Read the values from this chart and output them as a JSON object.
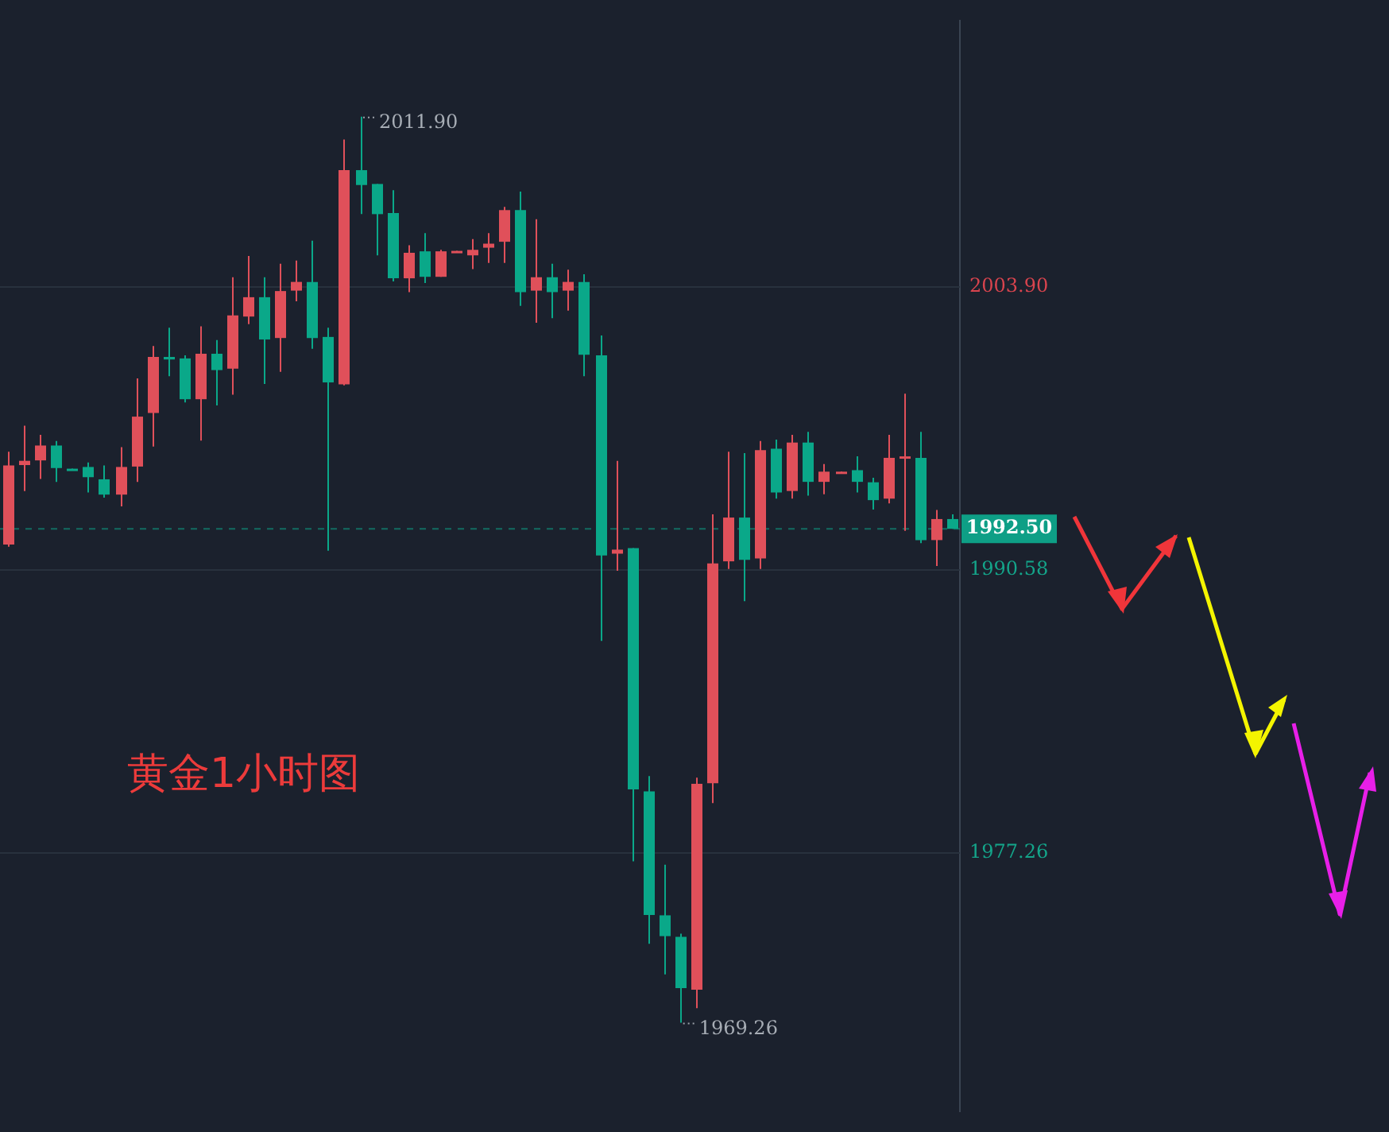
{
  "chart_data": {
    "type": "candlestick",
    "categories": [
      null,
      null,
      null,
      null,
      null,
      null,
      null,
      null,
      null,
      null,
      null,
      null,
      null,
      null,
      null,
      null,
      null,
      null,
      null,
      null,
      null,
      null,
      null,
      null,
      null,
      null,
      null,
      null,
      null,
      null,
      null,
      null,
      null,
      null,
      null,
      null,
      null,
      null,
      null,
      null,
      null,
      null,
      null,
      null,
      null,
      null,
      null,
      null,
      null,
      null,
      null,
      null,
      null,
      null,
      null,
      null,
      null,
      null,
      null,
      null
    ],
    "ohlc": [
      [
        1991.76,
        1996.13,
        1991.66,
        1995.48
      ],
      [
        1995.5,
        1997.35,
        1994.28,
        1995.7
      ],
      [
        1995.72,
        1996.92,
        1994.85,
        1996.42
      ],
      [
        1996.42,
        1996.63,
        1994.71,
        1995.36
      ],
      [
        1995.33,
        1995.33,
        1995.3,
        1995.3
      ],
      [
        1995.41,
        1995.62,
        1994.21,
        1994.93
      ],
      [
        1994.83,
        1995.48,
        1993.97,
        1994.11
      ],
      [
        1994.11,
        1996.34,
        1993.56,
        1995.41
      ],
      [
        1995.43,
        1999.58,
        1994.71,
        1997.78
      ],
      [
        1997.95,
        2001.1,
        1996.37,
        2000.59
      ],
      [
        2000.59,
        2001.96,
        1999.68,
        2000.47
      ],
      [
        2000.52,
        2000.66,
        1998.45,
        1998.6
      ],
      [
        1998.6,
        2002.03,
        1996.65,
        2000.74
      ],
      [
        2000.74,
        2001.38,
        1998.31,
        1999.97
      ],
      [
        2000.04,
        2004.34,
        1998.81,
        2002.54
      ],
      [
        2002.49,
        2005.34,
        2002.13,
        2003.4
      ],
      [
        2003.4,
        2004.34,
        1999.32,
        2001.41
      ],
      [
        2001.48,
        2004.98,
        1999.89,
        2003.69
      ],
      [
        2003.71,
        2005.13,
        2003.21,
        2004.12
      ],
      [
        2004.12,
        2006.06,
        2000.97,
        2001.48
      ],
      [
        2001.53,
        2001.96,
        1991.47,
        1999.39
      ],
      [
        1999.3,
        2010.82,
        1999.25,
        2009.38
      ],
      [
        2009.38,
        2011.9,
        2007.31,
        2008.68
      ],
      [
        2008.73,
        2008.73,
        2005.37,
        2007.31
      ],
      [
        2007.36,
        2008.44,
        2004.14,
        2004.29
      ],
      [
        2004.29,
        2005.85,
        2003.64,
        2005.49
      ],
      [
        2005.56,
        2006.42,
        2004.07,
        2004.36
      ],
      [
        2004.36,
        2005.63,
        2004.36,
        2005.56
      ],
      [
        2005.53,
        2005.58,
        2005.53,
        2005.58
      ],
      [
        2005.37,
        2006.14,
        2004.72,
        2005.63
      ],
      [
        2005.73,
        2006.42,
        2005.01,
        2005.92
      ],
      [
        2006.01,
        2007.65,
        2005.01,
        2007.5
      ],
      [
        2007.5,
        2008.37,
        2002.99,
        2003.64
      ],
      [
        2003.71,
        2007.07,
        2002.2,
        2004.34
      ],
      [
        2004.34,
        2004.98,
        2002.41,
        2003.64
      ],
      [
        2003.71,
        2004.7,
        2002.77,
        2004.12
      ],
      [
        2004.12,
        2004.48,
        1999.68,
        2000.69
      ],
      [
        2000.66,
        2001.6,
        1987.22,
        1991.25
      ],
      [
        1991.33,
        1995.7,
        1990.53,
        1991.52
      ],
      [
        1991.59,
        1991.59,
        1976.85,
        1980.24
      ],
      [
        1980.14,
        1980.86,
        1972.97,
        1974.33
      ],
      [
        1974.31,
        1976.69,
        1971.53,
        1973.33
      ],
      [
        1973.3,
        1973.45,
        1969.26,
        1970.88
      ],
      [
        1970.81,
        1980.79,
        1969.94,
        1980.5
      ],
      [
        1980.53,
        1993.18,
        1979.59,
        1990.87
      ],
      [
        1990.97,
        1996.13,
        1990.61,
        1993.03
      ],
      [
        1993.03,
        1996.06,
        1989.09,
        1991.04
      ],
      [
        1991.11,
        1996.63,
        1990.61,
        1996.2
      ],
      [
        1996.27,
        1996.7,
        1993.92,
        1994.21
      ],
      [
        1994.28,
        1996.92,
        1993.92,
        1996.56
      ],
      [
        1996.56,
        1997.06,
        1994.06,
        1994.71
      ],
      [
        1994.71,
        1995.55,
        1994.13,
        1995.19
      ],
      [
        1995.16,
        1995.19,
        1995.16,
        1995.19
      ],
      [
        1995.26,
        1995.91,
        1994.21,
        1994.71
      ],
      [
        1994.69,
        1994.9,
        1993.41,
        1993.85
      ],
      [
        1993.92,
        1996.92,
        1993.7,
        1995.84
      ],
      [
        1995.88,
        1998.86,
        1992.41,
        1995.91
      ],
      [
        1995.84,
        1997.06,
        1991.83,
        1991.97
      ],
      [
        1991.97,
        1993.39,
        1990.75,
        1992.96
      ],
      [
        1992.96,
        1993.18,
        1992.5,
        1992.5
      ]
    ],
    "colors": [
      "#e0505a",
      "#e0505a",
      "#e0505a",
      "#0aa889",
      "#0aa889",
      "#0aa889",
      "#0aa889",
      "#e0505a",
      "#e0505a",
      "#e0505a",
      "#0aa889",
      "#0aa889",
      "#e0505a",
      "#0aa889",
      "#e0505a",
      "#e0505a",
      "#0aa889",
      "#e0505a",
      "#e0505a",
      "#0aa889",
      "#0aa889",
      "#e0505a",
      "#0aa889",
      "#0aa889",
      "#0aa889",
      "#e0505a",
      "#0aa889",
      "#e0505a",
      "#e0505a",
      "#e0505a",
      "#e0505a",
      "#e0505a",
      "#0aa889",
      "#e0505a",
      "#0aa889",
      "#e0505a",
      "#0aa889",
      "#0aa889",
      "#e0505a",
      "#0aa889",
      "#0aa889",
      "#0aa889",
      "#0aa889",
      "#e0505a",
      "#e0505a",
      "#e0505a",
      "#0aa889",
      "#e0505a",
      "#0aa889",
      "#e0505a",
      "#0aa889",
      "#e0505a",
      "#e0505a",
      "#0aa889",
      "#0aa889",
      "#e0505a",
      "#e0505a",
      "#0aa889",
      "#e0505a",
      "#0aa889"
    ],
    "ylim": [
      1965.1,
      2016.4
    ],
    "yticks": [
      {
        "value": 2003.9,
        "label": "2003.90"
      },
      {
        "value": 1990.58,
        "label": "1990.58"
      },
      {
        "value": 1977.26,
        "label": "1977.26"
      }
    ],
    "tick_labels": "y",
    "grid": "y",
    "ref_lines": [
      {
        "axis": "y",
        "value": 1992.5,
        "label": "1992.50",
        "color": "#0e9f86",
        "line_style": "dashed"
      }
    ],
    "annotations": [
      "2011.90",
      "1969.26",
      "黄金1小时图"
    ]
  }
}
